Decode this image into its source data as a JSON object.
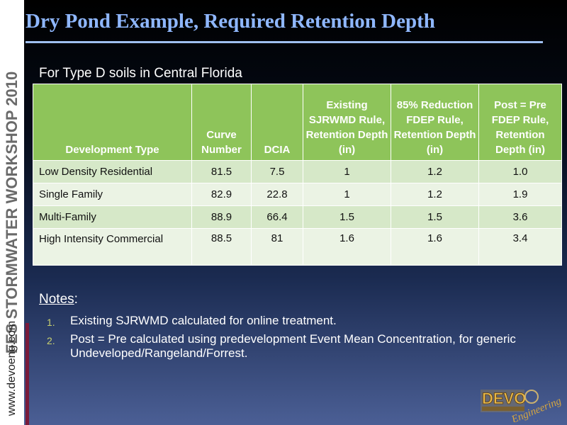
{
  "sidebar": {
    "vertical_text": "FES STORMWATER WORKSHOP 2010",
    "url": "www.devoeng.com"
  },
  "slide": {
    "title": "Dry Pond Example, Required Retention Depth",
    "subtitle": "For Type D soils in Central Florida"
  },
  "table": {
    "headers": [
      "Development Type",
      "Curve Number",
      "DCIA",
      "Existing SJRWMD Rule, Retention Depth (in)",
      "85% Reduction FDEP Rule, Retention Depth (in)",
      "Post = Pre FDEP Rule, Retention Depth (in)"
    ],
    "rows": [
      [
        "Low Density Residential",
        "81.5",
        "7.5",
        "1",
        "1.2",
        "1.0"
      ],
      [
        "Single Family",
        "82.9",
        "22.8",
        "1",
        "1.2",
        "1.9"
      ],
      [
        "Multi-Family",
        "88.9",
        "66.4",
        "1.5",
        "1.5",
        "3.6"
      ],
      [
        "High Intensity Commercial",
        "88.5",
        "81",
        "1.6",
        "1.6",
        "3.4"
      ]
    ]
  },
  "notes": {
    "heading": "Notes",
    "heading_suffix": ":",
    "items": [
      {
        "num": "1.",
        "text": "Existing SJRWMD calculated for online treatment."
      },
      {
        "num": "2.",
        "text": "Post = Pre calculated using predevelopment Event Mean Concentration, for generic Undeveloped/Rangeland/Forrest."
      }
    ]
  },
  "logo": {
    "main": "DEVO",
    "script": "Engineering"
  },
  "colors": {
    "title": "#8fb7ff",
    "header_bg": "#8ec45a",
    "row_odd": "#d6e8c8",
    "row_even": "#ebf3e4",
    "accent": "#7a1a3a"
  }
}
